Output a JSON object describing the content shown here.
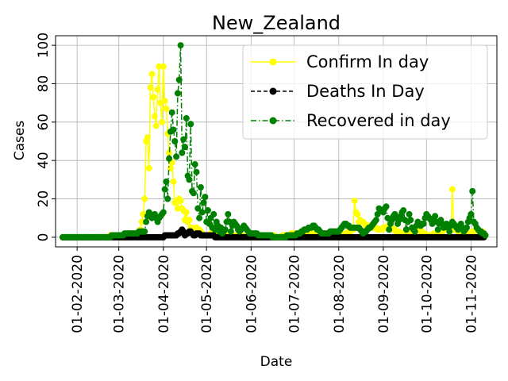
{
  "chart_data": {
    "type": "line",
    "title": "New_Zealand",
    "xlabel": "Date",
    "ylabel": "Cases",
    "ylim": [
      -5,
      105
    ],
    "xlim": [
      "2020-01-17",
      "2020-11-19"
    ],
    "grid": true,
    "legend_position": "upper right",
    "x_ticks": [
      "2020-02-01",
      "2020-03-01",
      "2020-04-01",
      "2020-05-01",
      "2020-06-01",
      "2020-07-01",
      "2020-08-01",
      "2020-09-01",
      "2020-10-01",
      "2020-11-01"
    ],
    "x_tick_labels": [
      "01-02-2020",
      "01-03-2020",
      "01-04-2020",
      "01-05-2020",
      "01-06-2020",
      "01-07-2020",
      "01-08-2020",
      "01-09-2020",
      "01-10-2020",
      "01-11-2020"
    ],
    "y_ticks": [
      0,
      20,
      40,
      60,
      80,
      100
    ],
    "y_tick_labels": [
      "0",
      "20",
      "40",
      "60",
      "80",
      "100"
    ],
    "series": [
      {
        "name": "Confirm In day",
        "color": "#ffff00",
        "line_style": "solid",
        "x": [
          "2020-01-22",
          "2020-02-05",
          "2020-02-20",
          "2020-02-28",
          "2020-03-05",
          "2020-03-10",
          "2020-03-14",
          "2020-03-16",
          "2020-03-17",
          "2020-03-18",
          "2020-03-19",
          "2020-03-20",
          "2020-03-21",
          "2020-03-22",
          "2020-03-23",
          "2020-03-24",
          "2020-03-25",
          "2020-03-26",
          "2020-03-27",
          "2020-03-28",
          "2020-03-29",
          "2020-03-30",
          "2020-03-31",
          "2020-04-01",
          "2020-04-02",
          "2020-04-03",
          "2020-04-04",
          "2020-04-05",
          "2020-04-06",
          "2020-04-07",
          "2020-04-08",
          "2020-04-09",
          "2020-04-10",
          "2020-04-11",
          "2020-04-12",
          "2020-04-13",
          "2020-04-14",
          "2020-04-15",
          "2020-04-16",
          "2020-04-17",
          "2020-04-18",
          "2020-04-19",
          "2020-04-20",
          "2020-04-21",
          "2020-04-22",
          "2020-04-23",
          "2020-04-24",
          "2020-04-25",
          "2020-04-26",
          "2020-04-27",
          "2020-04-28",
          "2020-04-29",
          "2020-04-30",
          "2020-05-02",
          "2020-05-05",
          "2020-05-10",
          "2020-05-20",
          "2020-06-01",
          "2020-06-15",
          "2020-06-20",
          "2020-07-01",
          "2020-07-10",
          "2020-07-20",
          "2020-08-01",
          "2020-08-11",
          "2020-08-12",
          "2020-08-13",
          "2020-08-14",
          "2020-08-15",
          "2020-08-16",
          "2020-08-20",
          "2020-08-25",
          "2020-08-30",
          "2020-09-05",
          "2020-09-10",
          "2020-09-15",
          "2020-09-20",
          "2020-09-25",
          "2020-10-01",
          "2020-10-10",
          "2020-10-18",
          "2020-10-19",
          "2020-10-20",
          "2020-10-25",
          "2020-11-01",
          "2020-11-05",
          "2020-11-08",
          "2020-11-10"
        ],
        "y": [
          0,
          0,
          0,
          1,
          0,
          2,
          1,
          4,
          8,
          12,
          20,
          50,
          52,
          36,
          78,
          85,
          73,
          63,
          58,
          77,
          89,
          70,
          60,
          89,
          71,
          67,
          54,
          44,
          36,
          39,
          29,
          18,
          19,
          15,
          20,
          19,
          15,
          14,
          9,
          13,
          8,
          9,
          5,
          5,
          3,
          2,
          5,
          2,
          4,
          3,
          2,
          1,
          1,
          1,
          2,
          1,
          1,
          0,
          1,
          0,
          2,
          3,
          1,
          0,
          4,
          19,
          13,
          12,
          8,
          9,
          6,
          5,
          4,
          6,
          3,
          2,
          3,
          4,
          1,
          2,
          6,
          25,
          4,
          3,
          2,
          4,
          3,
          2
        ]
      },
      {
        "name": "Deaths In Day",
        "color": "#000000",
        "line_style": "dashed",
        "x": [
          "2020-01-22",
          "2020-03-29",
          "2020-04-05",
          "2020-04-10",
          "2020-04-12",
          "2020-04-14",
          "2020-04-16",
          "2020-04-18",
          "2020-04-20",
          "2020-04-22",
          "2020-04-25",
          "2020-04-28",
          "2020-05-02",
          "2020-05-10",
          "2020-06-01",
          "2020-08-01",
          "2020-09-01",
          "2020-10-01",
          "2020-11-10"
        ],
        "y": [
          0,
          0,
          1,
          1,
          2,
          4,
          1,
          2,
          3,
          1,
          2,
          1,
          1,
          0,
          0,
          0,
          0,
          0,
          0
        ]
      },
      {
        "name": "Recovered in day",
        "color": "#008000",
        "line_style": "dashdot",
        "x": [
          "2020-01-22",
          "2020-02-20",
          "2020-03-19",
          "2020-03-20",
          "2020-03-22",
          "2020-03-24",
          "2020-03-26",
          "2020-03-28",
          "2020-03-30",
          "2020-04-01",
          "2020-04-02",
          "2020-04-03",
          "2020-04-04",
          "2020-04-05",
          "2020-04-06",
          "2020-04-07",
          "2020-04-08",
          "2020-04-09",
          "2020-04-10",
          "2020-04-11",
          "2020-04-12",
          "2020-04-13",
          "2020-04-14",
          "2020-04-15",
          "2020-04-16",
          "2020-04-17",
          "2020-04-18",
          "2020-04-19",
          "2020-04-20",
          "2020-04-21",
          "2020-04-22",
          "2020-04-23",
          "2020-04-24",
          "2020-04-25",
          "2020-04-26",
          "2020-04-27",
          "2020-04-28",
          "2020-04-29",
          "2020-04-30",
          "2020-05-01",
          "2020-05-02",
          "2020-05-03",
          "2020-05-04",
          "2020-05-05",
          "2020-05-06",
          "2020-05-07",
          "2020-05-08",
          "2020-05-09",
          "2020-05-10",
          "2020-05-11",
          "2020-05-12",
          "2020-05-14",
          "2020-05-16",
          "2020-05-18",
          "2020-05-20",
          "2020-05-24",
          "2020-05-27",
          "2020-05-31",
          "2020-06-10",
          "2020-06-20",
          "2020-07-01",
          "2020-07-15",
          "2020-07-20",
          "2020-08-01",
          "2020-08-05",
          "2020-08-10",
          "2020-08-15",
          "2020-08-18",
          "2020-08-20",
          "2020-08-25",
          "2020-08-27",
          "2020-08-29",
          "2020-09-01",
          "2020-09-03",
          "2020-09-05",
          "2020-09-07",
          "2020-09-09",
          "2020-09-11",
          "2020-09-13",
          "2020-09-15",
          "2020-09-17",
          "2020-09-19",
          "2020-09-21",
          "2020-09-23",
          "2020-09-25",
          "2020-09-27",
          "2020-09-29",
          "2020-10-01",
          "2020-10-03",
          "2020-10-05",
          "2020-10-07",
          "2020-10-09",
          "2020-10-11",
          "2020-10-13",
          "2020-10-15",
          "2020-10-17",
          "2020-10-19",
          "2020-10-21",
          "2020-10-23",
          "2020-10-25",
          "2020-10-27",
          "2020-10-29",
          "2020-10-31",
          "2020-11-01",
          "2020-11-02",
          "2020-11-03",
          "2020-11-05",
          "2020-11-07",
          "2020-11-09",
          "2020-11-11"
        ],
        "y": [
          0,
          0,
          3,
          8,
          13,
          10,
          12,
          8,
          11,
          13,
          25,
          29,
          20,
          41,
          55,
          65,
          56,
          50,
          42,
          75,
          82,
          100,
          44,
          51,
          47,
          62,
          32,
          30,
          59,
          24,
          23,
          38,
          34,
          15,
          10,
          26,
          13,
          18,
          21,
          8,
          14,
          7,
          10,
          5,
          12,
          4,
          8,
          6,
          3,
          5,
          2,
          4,
          12,
          3,
          8,
          3,
          6,
          2,
          1,
          0,
          1,
          6,
          2,
          3,
          7,
          5,
          5,
          2,
          3,
          7,
          9,
          15,
          13,
          16,
          4,
          9,
          12,
          7,
          11,
          14,
          4,
          12,
          5,
          3,
          8,
          6,
          7,
          12,
          10,
          7,
          11,
          4,
          9,
          5,
          7,
          3,
          8,
          6,
          4,
          7,
          3,
          5,
          10,
          12,
          24,
          8,
          5,
          3,
          2,
          1
        ]
      }
    ]
  }
}
